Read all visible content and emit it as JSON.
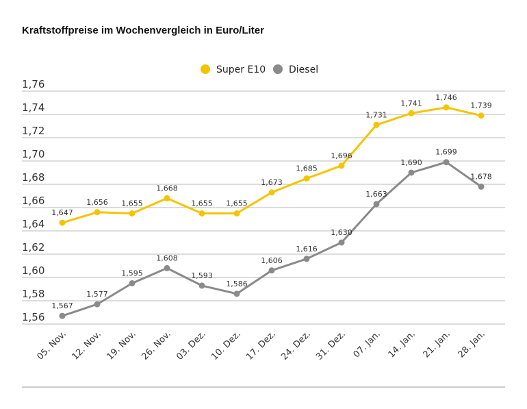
{
  "chart_data": {
    "type": "line",
    "title": "Kraftstoffpreise im Wochenvergleich in Euro/Liter",
    "categories": [
      "05. Nov.",
      "12. Nov.",
      "19. Nov.",
      "26. Nov.",
      "03. Dez.",
      "10. Dez.",
      "17. Dez.",
      "24. Dez.",
      "31. Dez.",
      "07. Jan.",
      "14. Jan.",
      "21. Jan.",
      "28. Jan."
    ],
    "series": [
      {
        "name": "Super E10",
        "color": "#f5c400",
        "values": [
          1.647,
          1.656,
          1.655,
          1.668,
          1.655,
          1.655,
          1.673,
          1.685,
          1.696,
          1.731,
          1.741,
          1.746,
          1.739
        ],
        "labels": [
          "1,647",
          "1,656",
          "1,655",
          "1,668",
          "1,655",
          "1,655",
          "1,673",
          "1,685",
          "1,696",
          "1,731",
          "1,741",
          "1,746",
          "1,739"
        ]
      },
      {
        "name": "Diesel",
        "color": "#8a8a8a",
        "values": [
          1.567,
          1.577,
          1.595,
          1.608,
          1.593,
          1.586,
          1.606,
          1.616,
          1.63,
          1.663,
          1.69,
          1.699,
          1.678
        ],
        "labels": [
          "1,567",
          "1,577",
          "1,595",
          "1,608",
          "1,593",
          "1,586",
          "1,606",
          "1,616",
          "1,630",
          "1,663",
          "1,690",
          "1,699",
          "1,678"
        ]
      }
    ],
    "yticks": [
      1.56,
      1.58,
      1.6,
      1.62,
      1.64,
      1.66,
      1.68,
      1.7,
      1.72,
      1.74,
      1.76
    ],
    "ytick_labels": [
      "1,56",
      "1,58",
      "1,60",
      "1,62",
      "1,64",
      "1,66",
      "1,68",
      "1,70",
      "1,72",
      "1,74",
      "1,76"
    ],
    "ylim": [
      1.56,
      1.76
    ],
    "grid": true,
    "legend_position": "top-center",
    "xlabel": "",
    "ylabel": ""
  }
}
